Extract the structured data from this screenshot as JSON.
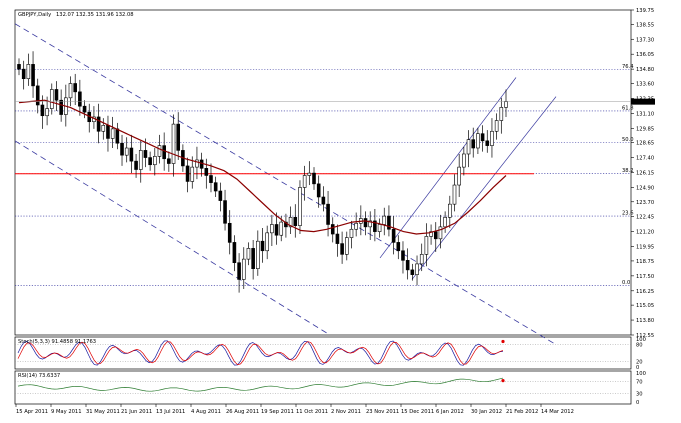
{
  "header": {
    "symbol": "GBPJPY,Daily",
    "ohlc": "132.07 132.35 131.96 132.08"
  },
  "chart_data": [
    {
      "type": "candlestick",
      "title": "GBPJPY,Daily",
      "ylim": [
        112.55,
        139.75
      ],
      "yticks": [
        "139.75",
        "138.55",
        "137.30",
        "136.05",
        "134.80",
        "133.60",
        "132.35",
        "131.10",
        "129.85",
        "128.65",
        "127.40",
        "126.15",
        "124.90",
        "123.70",
        "122.45",
        "121.20",
        "119.95",
        "118.75",
        "117.50",
        "116.25",
        "115.05",
        "113.80",
        "112.55"
      ],
      "last_price": "132.08",
      "fib_levels": [
        {
          "label": "76.4",
          "value": 134.75
        },
        {
          "label": "61.8",
          "value": 131.3
        },
        {
          "label": "50.0",
          "value": 128.65
        },
        {
          "label": "38.2",
          "value": 126.05
        },
        {
          "label": "23.6",
          "value": 122.5
        },
        {
          "label": "0.0",
          "value": 116.7
        }
      ],
      "moving_average_color": "#8b0000",
      "horizontal_line_color": "#ff0000",
      "channel_color": "#3a3aa0",
      "closes": [
        134.8,
        134.0,
        135.2,
        133.4,
        131.8,
        130.9,
        131.5,
        133.1,
        132.2,
        131.0,
        132.4,
        133.6,
        132.9,
        131.7,
        131.2,
        130.4,
        130.8,
        129.6,
        130.1,
        129.0,
        129.8,
        128.6,
        127.6,
        128.2,
        127.1,
        126.4,
        128.0,
        127.4,
        126.8,
        127.5,
        128.4,
        127.3,
        126.9,
        130.2,
        128.0,
        126.7,
        125.4,
        126.6,
        127.2,
        126.5,
        125.9,
        125.3,
        124.6,
        123.8,
        121.9,
        120.3,
        118.6,
        117.2,
        118.9,
        119.8,
        118.1,
        120.4,
        119.6,
        121.1,
        121.8,
        120.9,
        122.0,
        121.6,
        122.4,
        121.7,
        124.9,
        125.9,
        126.1,
        125.2,
        124.1,
        123.5,
        121.8,
        121.0,
        120.2,
        119.3,
        120.7,
        121.4,
        121.9,
        122.3,
        121.6,
        122.1,
        121.2,
        121.8,
        122.5,
        121.4,
        120.3,
        119.6,
        118.8,
        118.0,
        117.6,
        118.5,
        119.3,
        120.8,
        121.2,
        120.6,
        121.6,
        122.4,
        123.5,
        125.1,
        126.6,
        127.7,
        128.9,
        128.2,
        129.4,
        128.8,
        128.4,
        129.6,
        130.5,
        131.6,
        132.1
      ],
      "ma_values": [
        132.0,
        132.1,
        132.2,
        131.9,
        131.6,
        131.1,
        130.6,
        130.1,
        129.6,
        129.1,
        128.6,
        128.1,
        127.7,
        127.3,
        127.0,
        126.7,
        126.3,
        125.6,
        124.6,
        123.6,
        122.6,
        121.8,
        121.3,
        121.2,
        121.4,
        121.7,
        122.0,
        122.1,
        121.9,
        121.6,
        121.2,
        121.0,
        121.1,
        121.4,
        121.9,
        122.8,
        123.8,
        124.9,
        125.9
      ],
      "indicators": [
        {
          "name": "Stoch(5,3,3)",
          "label": "Stoch(5,3,3) 91.4858 91.1763",
          "yticks": [
            "100",
            "80",
            "20",
            "0"
          ],
          "colors": [
            "#1a1aa0",
            "#e00000"
          ]
        },
        {
          "name": "RSI(14)",
          "label": "RSI(14) 73.6337",
          "yticks": [
            "100",
            "70",
            "30",
            "0"
          ],
          "colors": [
            "#2e7d32"
          ]
        }
      ],
      "x_labels": [
        "15 Apr 2011",
        "9 May 2011",
        "31 May 2011",
        "21 Jun 2011",
        "13 Jul 2011",
        "4 Aug 2011",
        "26 Aug 2011",
        "19 Sep 2011",
        "11 Oct 2011",
        "2 Nov 2011",
        "23 Nov 2011",
        "15 Dec 2011",
        "6 Jan 2012",
        "30 Jan 2012",
        "21 Feb 2012",
        "14 Mar 2012"
      ]
    }
  ]
}
